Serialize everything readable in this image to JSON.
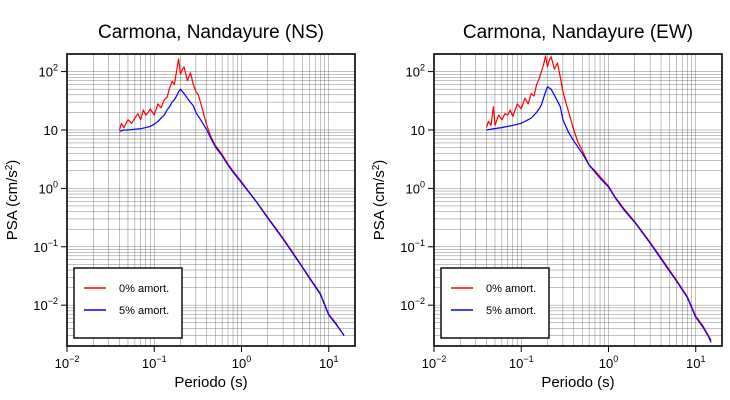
{
  "chart_data": [
    {
      "type": "line",
      "title": "Carmona, Nandayure (NS)",
      "xlabel": "Periodo (s)",
      "ylabel": "PSA (cm/s²)",
      "xscale": "log",
      "yscale": "log",
      "xlim": [
        0.01,
        20
      ],
      "ylim": [
        0.002,
        200
      ],
      "grid": true,
      "legend_position": "bottom-left",
      "x_ticks": [
        {
          "base": "10",
          "exp": "−2",
          "value": 0.01
        },
        {
          "base": "10",
          "exp": "−1",
          "value": 0.1
        },
        {
          "base": "10",
          "exp": "0",
          "value": 1
        },
        {
          "base": "10",
          "exp": "1",
          "value": 10
        }
      ],
      "y_ticks": [
        {
          "base": "10",
          "exp": "−2",
          "value": 0.01
        },
        {
          "base": "10",
          "exp": "−1",
          "value": 0.1
        },
        {
          "base": "10",
          "exp": "0",
          "value": 1
        },
        {
          "base": "",
          "exp": "",
          "text": "10",
          "value": 10
        },
        {
          "base": "",
          "exp": "",
          "text": "10²",
          "value": 100
        }
      ],
      "series": [
        {
          "name": "0% amort.",
          "color": "#ff0000",
          "x": [
            0.04,
            0.042,
            0.045,
            0.05,
            0.055,
            0.06,
            0.065,
            0.07,
            0.075,
            0.08,
            0.085,
            0.09,
            0.1,
            0.11,
            0.12,
            0.13,
            0.14,
            0.15,
            0.16,
            0.17,
            0.18,
            0.19,
            0.2,
            0.21,
            0.22,
            0.24,
            0.26,
            0.28,
            0.3,
            0.32,
            0.35,
            0.4,
            0.45,
            0.5,
            0.6,
            0.7,
            0.8,
            1,
            1.2,
            1.5,
            2,
            3,
            4,
            5,
            6,
            8,
            10,
            12,
            14,
            15
          ],
          "y": [
            10,
            13,
            11,
            15,
            13,
            16,
            19,
            15,
            22,
            18,
            20,
            23,
            18,
            28,
            24,
            33,
            36,
            52,
            68,
            60,
            100,
            165,
            90,
            110,
            120,
            70,
            95,
            60,
            45,
            40,
            25,
            12,
            7.5,
            5.5,
            3.8,
            2.6,
            2,
            1.3,
            0.9,
            0.58,
            0.32,
            0.14,
            0.075,
            0.045,
            0.03,
            0.016,
            0.007,
            0.005,
            0.0035,
            0.003
          ]
        },
        {
          "name": "5% amort.",
          "color": "#0000ff",
          "x": [
            0.04,
            0.045,
            0.05,
            0.06,
            0.07,
            0.08,
            0.09,
            0.1,
            0.11,
            0.12,
            0.13,
            0.14,
            0.15,
            0.16,
            0.17,
            0.18,
            0.19,
            0.2,
            0.22,
            0.25,
            0.28,
            0.3,
            0.35,
            0.4,
            0.45,
            0.5,
            0.6,
            0.7,
            0.8,
            1,
            1.2,
            1.5,
            2,
            3,
            4,
            5,
            6,
            8,
            10,
            12,
            14,
            15
          ],
          "y": [
            9.5,
            10,
            10,
            10.3,
            10.5,
            11,
            11.5,
            12.5,
            14,
            16,
            18,
            22,
            25,
            30,
            33,
            38,
            45,
            50,
            42,
            32,
            26,
            20,
            14,
            10,
            7,
            5.2,
            3.6,
            2.5,
            1.9,
            1.25,
            0.88,
            0.57,
            0.31,
            0.135,
            0.072,
            0.044,
            0.029,
            0.0155,
            0.0068,
            0.0048,
            0.0035,
            0.003
          ]
        }
      ]
    },
    {
      "type": "line",
      "title": "Carmona, Nandayure (EW)",
      "xlabel": "Periodo (s)",
      "ylabel": "PSA (cm/s²)",
      "xscale": "log",
      "yscale": "log",
      "xlim": [
        0.01,
        20
      ],
      "ylim": [
        0.002,
        200
      ],
      "grid": true,
      "legend_position": "bottom-left",
      "x_ticks": [
        {
          "base": "10",
          "exp": "−2",
          "value": 0.01
        },
        {
          "base": "10",
          "exp": "−1",
          "value": 0.1
        },
        {
          "base": "10",
          "exp": "0",
          "value": 1
        },
        {
          "base": "10",
          "exp": "1",
          "value": 10
        }
      ],
      "y_ticks": [
        {
          "base": "10",
          "exp": "−2",
          "value": 0.01
        },
        {
          "base": "10",
          "exp": "−1",
          "value": 0.1
        },
        {
          "base": "10",
          "exp": "0",
          "value": 1
        },
        {
          "base": "",
          "exp": "",
          "text": "10",
          "value": 10
        },
        {
          "base": "",
          "exp": "",
          "text": "10²",
          "value": 100
        }
      ],
      "series": [
        {
          "name": "0% amort.",
          "color": "#ff0000",
          "x": [
            0.04,
            0.042,
            0.045,
            0.048,
            0.05,
            0.055,
            0.06,
            0.065,
            0.07,
            0.075,
            0.08,
            0.09,
            0.1,
            0.11,
            0.12,
            0.13,
            0.14,
            0.15,
            0.16,
            0.17,
            0.18,
            0.19,
            0.2,
            0.21,
            0.22,
            0.24,
            0.26,
            0.28,
            0.3,
            0.35,
            0.4,
            0.45,
            0.5,
            0.6,
            0.7,
            0.8,
            1,
            1.2,
            1.5,
            2,
            3,
            4,
            5,
            6,
            8,
            10,
            12,
            14,
            15
          ],
          "y": [
            11,
            14,
            12,
            25,
            12,
            18,
            15,
            19,
            18,
            22,
            17,
            28,
            23,
            35,
            28,
            42,
            38,
            60,
            75,
            100,
            130,
            185,
            120,
            160,
            180,
            110,
            140,
            80,
            45,
            20,
            10,
            6,
            4.5,
            2.5,
            2,
            1.6,
            1.1,
            0.7,
            0.45,
            0.27,
            0.12,
            0.065,
            0.04,
            0.027,
            0.014,
            0.0065,
            0.0045,
            0.003,
            0.0025
          ]
        },
        {
          "name": "5% amort.",
          "color": "#0000ff",
          "x": [
            0.04,
            0.045,
            0.05,
            0.06,
            0.07,
            0.08,
            0.09,
            0.1,
            0.11,
            0.12,
            0.13,
            0.14,
            0.15,
            0.16,
            0.17,
            0.18,
            0.19,
            0.2,
            0.22,
            0.25,
            0.28,
            0.3,
            0.35,
            0.4,
            0.45,
            0.5,
            0.6,
            0.7,
            0.8,
            1,
            1.2,
            1.5,
            2,
            3,
            4,
            5,
            6,
            8,
            10,
            12,
            14,
            15
          ],
          "y": [
            10,
            10.3,
            10.6,
            11,
            11.5,
            12,
            12.5,
            13,
            14,
            15,
            16,
            18,
            20,
            23,
            27,
            35,
            45,
            55,
            50,
            35,
            25,
            15,
            9,
            6.5,
            5,
            4,
            2.5,
            1.9,
            1.5,
            1.05,
            0.68,
            0.43,
            0.26,
            0.115,
            0.062,
            0.038,
            0.026,
            0.0135,
            0.0062,
            0.0043,
            0.0029,
            0.0023
          ]
        }
      ]
    }
  ]
}
